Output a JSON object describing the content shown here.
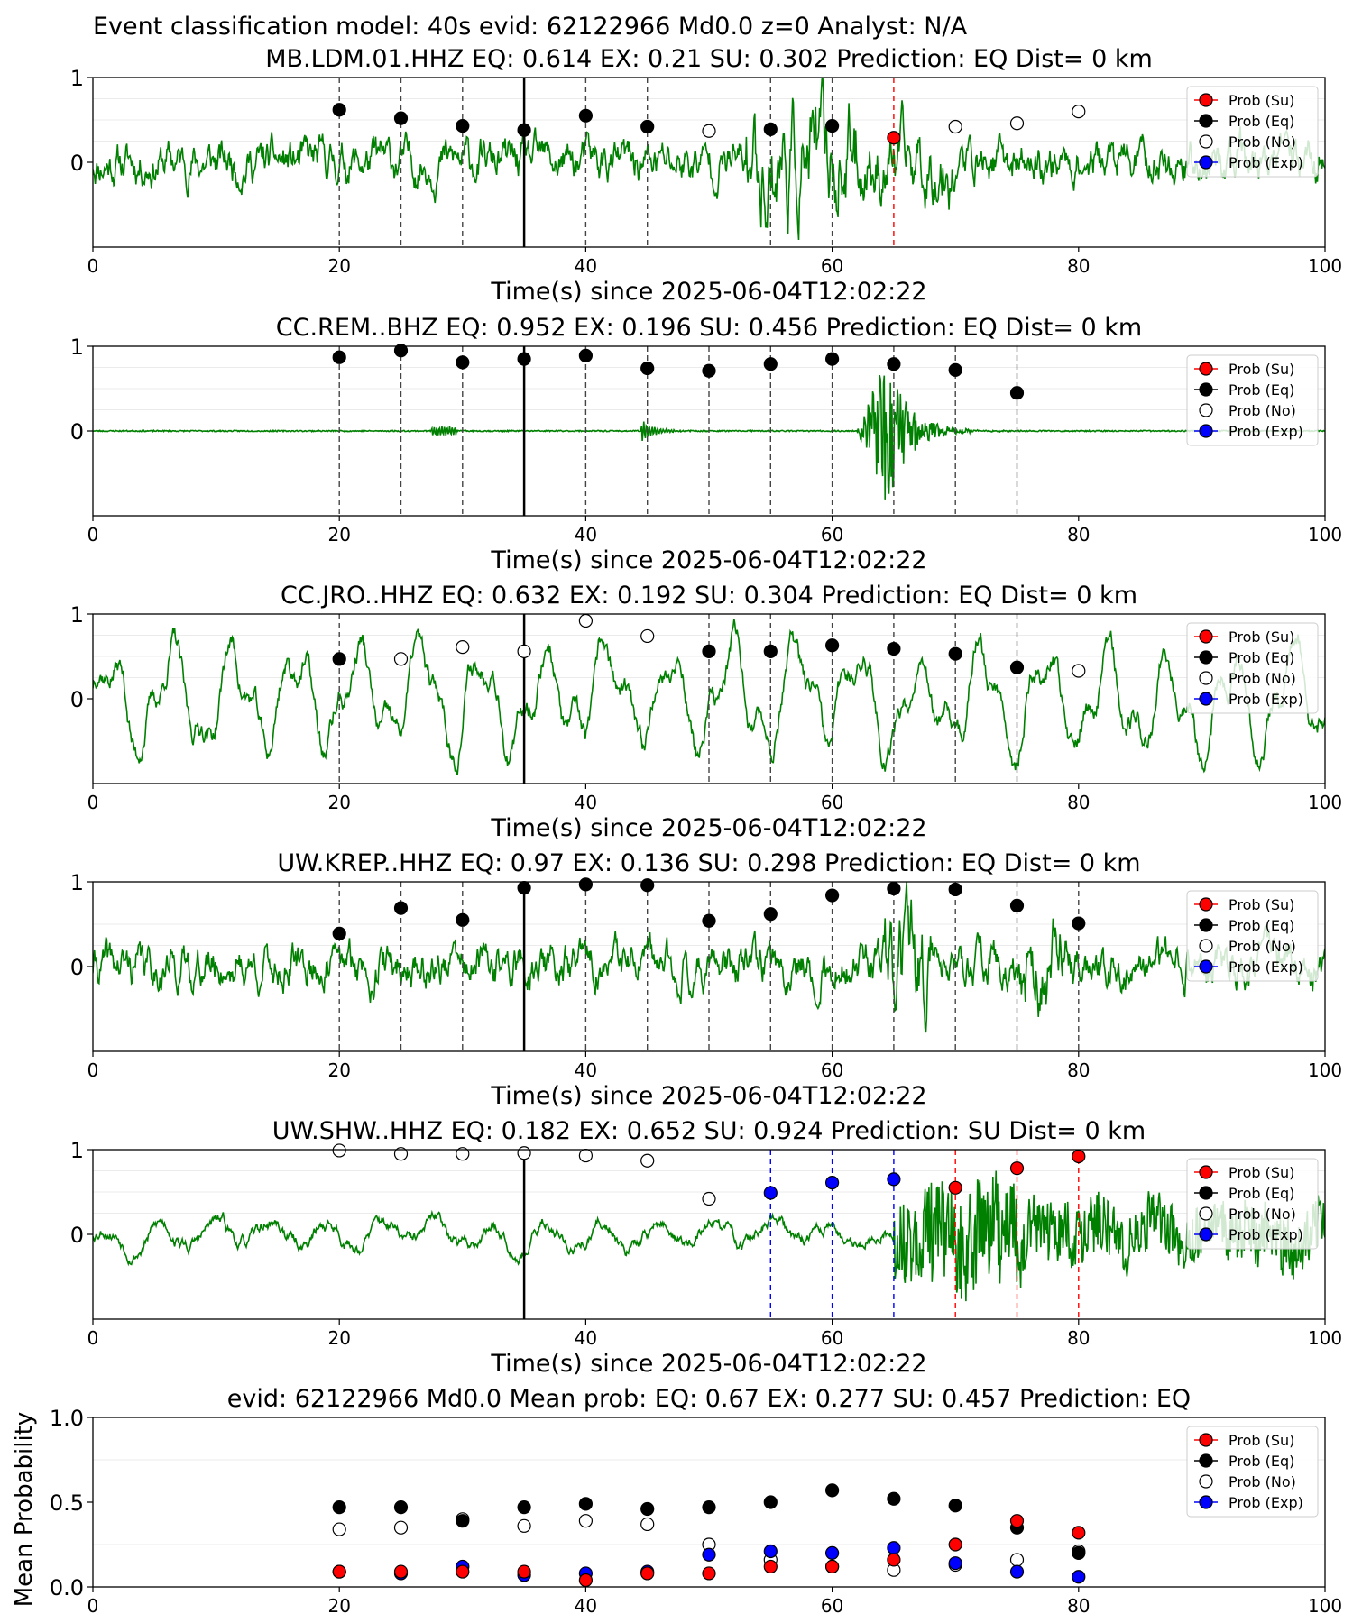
{
  "figure_title": "Event classification model: 40s evid: 62122966 Md0.0 z=0 Analyst: N/A",
  "colors": {
    "waveform": "#008000",
    "eq": "#000000",
    "su": "#ff0000",
    "exp": "#0000ff",
    "noise_face": "#ffffff",
    "frame": "#000000"
  },
  "legend_labels": [
    "Prob (Su)",
    "Prob (Eq)",
    "Prob (No)",
    "Prob (Exp)"
  ],
  "chart_data": [
    {
      "type": "scatter",
      "title": "MB.LDM.01.HHZ   EQ: 0.614  EX: 0.21  SU: 0.302   Prediction: EQ    Dist= 0 km",
      "xlabel": "Time(s) since 2025-06-04T12:02:22",
      "ylabel": "",
      "xlim": [
        0,
        100
      ],
      "ylim": [
        -1,
        1
      ],
      "xticks": [
        "0",
        "20",
        "40",
        "60",
        "80",
        "100"
      ],
      "yticks": [
        "0",
        "1"
      ],
      "waveform_style": "noise",
      "reference_line_x": 35,
      "vlines": [
        {
          "x": 20,
          "kind": "eq"
        },
        {
          "x": 25,
          "kind": "eq"
        },
        {
          "x": 30,
          "kind": "eq"
        },
        {
          "x": 40,
          "kind": "eq"
        },
        {
          "x": 45,
          "kind": "eq"
        },
        {
          "x": 55,
          "kind": "eq"
        },
        {
          "x": 60,
          "kind": "eq"
        },
        {
          "x": 65,
          "kind": "su"
        }
      ],
      "points": [
        {
          "x": 20,
          "y": 0.62,
          "kind": "eq"
        },
        {
          "x": 25,
          "y": 0.52,
          "kind": "eq"
        },
        {
          "x": 30,
          "y": 0.43,
          "kind": "eq"
        },
        {
          "x": 35,
          "y": 0.38,
          "kind": "eq"
        },
        {
          "x": 40,
          "y": 0.55,
          "kind": "eq"
        },
        {
          "x": 45,
          "y": 0.42,
          "kind": "eq"
        },
        {
          "x": 50,
          "y": 0.37,
          "kind": "no"
        },
        {
          "x": 55,
          "y": 0.39,
          "kind": "eq"
        },
        {
          "x": 60,
          "y": 0.43,
          "kind": "eq"
        },
        {
          "x": 65,
          "y": 0.29,
          "kind": "su"
        },
        {
          "x": 70,
          "y": 0.42,
          "kind": "no"
        },
        {
          "x": 75,
          "y": 0.46,
          "kind": "no"
        },
        {
          "x": 80,
          "y": 0.6,
          "kind": "no"
        }
      ]
    },
    {
      "type": "scatter",
      "title": "CC.REM..BHZ   EQ: 0.952  EX: 0.196  SU: 0.456   Prediction: EQ    Dist= 0 km",
      "xlabel": "Time(s) since 2025-06-04T12:02:22",
      "ylabel": "",
      "xlim": [
        0,
        100
      ],
      "ylim": [
        -1,
        1
      ],
      "xticks": [
        "0",
        "20",
        "40",
        "60",
        "80",
        "100"
      ],
      "yticks": [
        "0",
        "1"
      ],
      "waveform_style": "event",
      "reference_line_x": 35,
      "vlines": [
        {
          "x": 20,
          "kind": "eq"
        },
        {
          "x": 25,
          "kind": "eq"
        },
        {
          "x": 30,
          "kind": "eq"
        },
        {
          "x": 40,
          "kind": "eq"
        },
        {
          "x": 45,
          "kind": "eq"
        },
        {
          "x": 50,
          "kind": "eq"
        },
        {
          "x": 55,
          "kind": "eq"
        },
        {
          "x": 60,
          "kind": "eq"
        },
        {
          "x": 65,
          "kind": "eq"
        },
        {
          "x": 70,
          "kind": "eq"
        },
        {
          "x": 75,
          "kind": "eq"
        }
      ],
      "points": [
        {
          "x": 20,
          "y": 0.87,
          "kind": "eq"
        },
        {
          "x": 25,
          "y": 0.95,
          "kind": "eq"
        },
        {
          "x": 30,
          "y": 0.81,
          "kind": "eq"
        },
        {
          "x": 35,
          "y": 0.85,
          "kind": "eq"
        },
        {
          "x": 40,
          "y": 0.89,
          "kind": "eq"
        },
        {
          "x": 45,
          "y": 0.74,
          "kind": "eq"
        },
        {
          "x": 50,
          "y": 0.71,
          "kind": "eq"
        },
        {
          "x": 55,
          "y": 0.79,
          "kind": "eq"
        },
        {
          "x": 60,
          "y": 0.85,
          "kind": "eq"
        },
        {
          "x": 65,
          "y": 0.79,
          "kind": "eq"
        },
        {
          "x": 70,
          "y": 0.72,
          "kind": "eq"
        },
        {
          "x": 75,
          "y": 0.45,
          "kind": "eq"
        }
      ]
    },
    {
      "type": "scatter",
      "title": "CC.JRO..HHZ   EQ: 0.632  EX: 0.192  SU: 0.304   Prediction: EQ    Dist= 0 km",
      "xlabel": "Time(s) since 2025-06-04T12:02:22",
      "ylabel": "",
      "xlim": [
        0,
        100
      ],
      "ylim": [
        -1,
        1
      ],
      "xticks": [
        "0",
        "20",
        "40",
        "60",
        "80",
        "100"
      ],
      "yticks": [
        "0",
        "1"
      ],
      "waveform_style": "oscillation",
      "reference_line_x": 35,
      "vlines": [
        {
          "x": 20,
          "kind": "eq"
        },
        {
          "x": 50,
          "kind": "eq"
        },
        {
          "x": 55,
          "kind": "eq"
        },
        {
          "x": 60,
          "kind": "eq"
        },
        {
          "x": 65,
          "kind": "eq"
        },
        {
          "x": 70,
          "kind": "eq"
        },
        {
          "x": 75,
          "kind": "eq"
        }
      ],
      "points": [
        {
          "x": 20,
          "y": 0.47,
          "kind": "eq"
        },
        {
          "x": 25,
          "y": 0.47,
          "kind": "no"
        },
        {
          "x": 30,
          "y": 0.61,
          "kind": "no"
        },
        {
          "x": 35,
          "y": 0.56,
          "kind": "no"
        },
        {
          "x": 40,
          "y": 0.92,
          "kind": "no"
        },
        {
          "x": 45,
          "y": 0.74,
          "kind": "no"
        },
        {
          "x": 50,
          "y": 0.56,
          "kind": "eq"
        },
        {
          "x": 55,
          "y": 0.56,
          "kind": "eq"
        },
        {
          "x": 60,
          "y": 0.63,
          "kind": "eq"
        },
        {
          "x": 65,
          "y": 0.59,
          "kind": "eq"
        },
        {
          "x": 70,
          "y": 0.53,
          "kind": "eq"
        },
        {
          "x": 75,
          "y": 0.37,
          "kind": "eq"
        },
        {
          "x": 80,
          "y": 0.33,
          "kind": "no"
        }
      ]
    },
    {
      "type": "scatter",
      "title": "UW.KREP..HHZ   EQ: 0.97  EX: 0.136  SU: 0.298   Prediction: EQ    Dist= 0 km",
      "xlabel": "Time(s) since 2025-06-04T12:02:22",
      "ylabel": "",
      "xlim": [
        0,
        100
      ],
      "ylim": [
        -1,
        1
      ],
      "xticks": [
        "0",
        "20",
        "40",
        "60",
        "80",
        "100"
      ],
      "yticks": [
        "0",
        "1"
      ],
      "waveform_style": "noise2",
      "reference_line_x": 35,
      "vlines": [
        {
          "x": 20,
          "kind": "eq"
        },
        {
          "x": 25,
          "kind": "eq"
        },
        {
          "x": 30,
          "kind": "eq"
        },
        {
          "x": 40,
          "kind": "eq"
        },
        {
          "x": 45,
          "kind": "eq"
        },
        {
          "x": 50,
          "kind": "eq"
        },
        {
          "x": 55,
          "kind": "eq"
        },
        {
          "x": 60,
          "kind": "eq"
        },
        {
          "x": 65,
          "kind": "eq"
        },
        {
          "x": 70,
          "kind": "eq"
        },
        {
          "x": 75,
          "kind": "eq"
        },
        {
          "x": 80,
          "kind": "eq"
        }
      ],
      "points": [
        {
          "x": 20,
          "y": 0.39,
          "kind": "eq"
        },
        {
          "x": 25,
          "y": 0.69,
          "kind": "eq"
        },
        {
          "x": 30,
          "y": 0.55,
          "kind": "eq"
        },
        {
          "x": 35,
          "y": 0.93,
          "kind": "eq"
        },
        {
          "x": 40,
          "y": 0.97,
          "kind": "eq"
        },
        {
          "x": 45,
          "y": 0.96,
          "kind": "eq"
        },
        {
          "x": 50,
          "y": 0.54,
          "kind": "eq"
        },
        {
          "x": 55,
          "y": 0.62,
          "kind": "eq"
        },
        {
          "x": 60,
          "y": 0.84,
          "kind": "eq"
        },
        {
          "x": 65,
          "y": 0.92,
          "kind": "eq"
        },
        {
          "x": 70,
          "y": 0.91,
          "kind": "eq"
        },
        {
          "x": 75,
          "y": 0.72,
          "kind": "eq"
        },
        {
          "x": 80,
          "y": 0.51,
          "kind": "eq"
        }
      ]
    },
    {
      "type": "scatter",
      "title": "UW.SHW..HHZ   EQ: 0.182  EX: 0.652  SU: 0.924   Prediction: SU    Dist= 0 km",
      "xlabel": "Time(s) since 2025-06-04T12:02:22",
      "ylabel": "",
      "xlim": [
        0,
        100
      ],
      "ylim": [
        -1,
        1
      ],
      "xticks": [
        "0",
        "20",
        "40",
        "60",
        "80",
        "100"
      ],
      "yticks": [
        "0",
        "1"
      ],
      "waveform_style": "smooth",
      "reference_line_x": 35,
      "vlines": [
        {
          "x": 55,
          "kind": "exp"
        },
        {
          "x": 60,
          "kind": "exp"
        },
        {
          "x": 65,
          "kind": "exp"
        },
        {
          "x": 70,
          "kind": "su"
        },
        {
          "x": 75,
          "kind": "su"
        },
        {
          "x": 80,
          "kind": "su"
        }
      ],
      "points": [
        {
          "x": 20,
          "y": 0.99,
          "kind": "no"
        },
        {
          "x": 25,
          "y": 0.95,
          "kind": "no"
        },
        {
          "x": 30,
          "y": 0.95,
          "kind": "no"
        },
        {
          "x": 35,
          "y": 0.96,
          "kind": "no"
        },
        {
          "x": 40,
          "y": 0.93,
          "kind": "no"
        },
        {
          "x": 45,
          "y": 0.87,
          "kind": "no"
        },
        {
          "x": 50,
          "y": 0.42,
          "kind": "no"
        },
        {
          "x": 55,
          "y": 0.49,
          "kind": "exp"
        },
        {
          "x": 60,
          "y": 0.61,
          "kind": "exp"
        },
        {
          "x": 65,
          "y": 0.65,
          "kind": "exp"
        },
        {
          "x": 70,
          "y": 0.55,
          "kind": "su"
        },
        {
          "x": 75,
          "y": 0.78,
          "kind": "su"
        },
        {
          "x": 80,
          "y": 0.92,
          "kind": "su"
        }
      ]
    },
    {
      "type": "scatter",
      "title": "evid: 62122966  Md0.0   Mean prob:    EQ: 0.67  EX: 0.277  SU: 0.457   Prediction: EQ",
      "xlabel": "",
      "ylabel": "Mean Probability",
      "xlim": [
        0,
        100
      ],
      "ylim": [
        0,
        1
      ],
      "xticks": [
        "0",
        "20",
        "40",
        "60",
        "80",
        "100"
      ],
      "yticks": [
        "0.0",
        "0.5",
        "1.0"
      ],
      "waveform_style": "none",
      "series": [
        {
          "name": "Prob (No)",
          "kind": "no",
          "x": [
            20,
            25,
            30,
            35,
            40,
            45,
            50,
            55,
            60,
            65,
            70,
            75,
            80
          ],
          "y": [
            0.34,
            0.35,
            0.4,
            0.36,
            0.39,
            0.37,
            0.25,
            0.16,
            0.12,
            0.1,
            0.13,
            0.16,
            0.21
          ]
        },
        {
          "name": "Prob (Eq)",
          "kind": "eq",
          "x": [
            20,
            25,
            30,
            35,
            40,
            45,
            50,
            55,
            60,
            65,
            70,
            75,
            80
          ],
          "y": [
            0.47,
            0.47,
            0.39,
            0.47,
            0.49,
            0.46,
            0.47,
            0.5,
            0.57,
            0.52,
            0.48,
            0.35,
            0.2
          ]
        },
        {
          "name": "Prob (Exp)",
          "kind": "exp",
          "x": [
            20,
            25,
            30,
            35,
            40,
            45,
            50,
            55,
            60,
            65,
            70,
            75,
            80
          ],
          "y": [
            0.09,
            0.08,
            0.12,
            0.07,
            0.08,
            0.09,
            0.19,
            0.21,
            0.2,
            0.23,
            0.14,
            0.09,
            0.06
          ]
        },
        {
          "name": "Prob (Su)",
          "kind": "su",
          "x": [
            20,
            25,
            30,
            35,
            40,
            45,
            50,
            55,
            60,
            65,
            70,
            75,
            80
          ],
          "y": [
            0.09,
            0.09,
            0.09,
            0.09,
            0.04,
            0.08,
            0.08,
            0.12,
            0.12,
            0.16,
            0.25,
            0.39,
            0.32
          ]
        }
      ]
    }
  ]
}
